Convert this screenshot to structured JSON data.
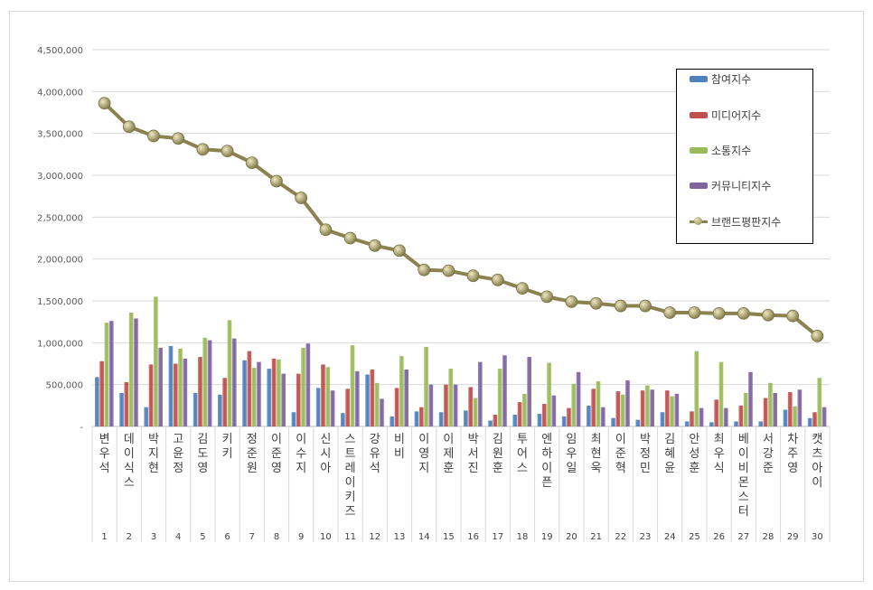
{
  "chart_data": {
    "type": "bar",
    "title": "",
    "xlabel": "",
    "ylabel": "",
    "ylim": [
      0,
      4500000
    ],
    "y_ticks": [
      "-",
      "500,000",
      "1,000,000",
      "1,500,000",
      "2,000,000",
      "2,500,000",
      "3,000,000",
      "3,500,000",
      "4,000,000",
      "4,500,000"
    ],
    "grid": true,
    "legend_position": "top-right",
    "categories": [
      "변우석",
      "데이식스",
      "박지현",
      "고윤정",
      "김도영",
      "키키",
      "정준원",
      "이준영",
      "이수지",
      "신시아",
      "스트레이키즈",
      "강유석",
      "비비",
      "이영지",
      "이제훈",
      "박서진",
      "김원훈",
      "투어스",
      "엔하이픈",
      "임우일",
      "최현욱",
      "이준혁",
      "박정민",
      "김혜윤",
      "안성훈",
      "최우식",
      "베이비몬스터",
      "서강준",
      "차주영",
      "캣츠아이"
    ],
    "ranks": [
      "1",
      "2",
      "3",
      "4",
      "5",
      "6",
      "7",
      "8",
      "9",
      "10",
      "11",
      "12",
      "13",
      "14",
      "15",
      "16",
      "17",
      "18",
      "19",
      "20",
      "21",
      "22",
      "23",
      "24",
      "25",
      "26",
      "27",
      "28",
      "29",
      "30"
    ],
    "series": [
      {
        "name": "참여지수",
        "type": "bar",
        "color": "#4f81bd",
        "values": [
          590000,
          400000,
          230000,
          960000,
          400000,
          380000,
          790000,
          690000,
          170000,
          460000,
          160000,
          620000,
          120000,
          180000,
          170000,
          190000,
          70000,
          140000,
          150000,
          120000,
          250000,
          100000,
          80000,
          170000,
          60000,
          50000,
          60000,
          60000,
          200000,
          100000
        ]
      },
      {
        "name": "미디어지수",
        "type": "bar",
        "color": "#c0504d",
        "values": [
          780000,
          530000,
          740000,
          750000,
          830000,
          580000,
          900000,
          810000,
          630000,
          740000,
          450000,
          680000,
          460000,
          230000,
          500000,
          470000,
          140000,
          290000,
          270000,
          220000,
          450000,
          420000,
          430000,
          430000,
          180000,
          320000,
          250000,
          340000,
          410000,
          170000
        ]
      },
      {
        "name": "소통지수",
        "type": "bar",
        "color": "#9bbb59",
        "values": [
          1240000,
          1360000,
          1550000,
          930000,
          1060000,
          1270000,
          700000,
          800000,
          940000,
          710000,
          970000,
          520000,
          840000,
          950000,
          690000,
          340000,
          690000,
          390000,
          760000,
          510000,
          540000,
          380000,
          490000,
          360000,
          900000,
          770000,
          400000,
          520000,
          240000,
          580000
        ]
      },
      {
        "name": "커뮤니티지수",
        "type": "bar",
        "color": "#8064a2",
        "values": [
          1260000,
          1290000,
          940000,
          810000,
          1030000,
          1050000,
          770000,
          630000,
          990000,
          430000,
          660000,
          330000,
          680000,
          500000,
          500000,
          770000,
          850000,
          830000,
          370000,
          650000,
          230000,
          550000,
          440000,
          390000,
          220000,
          220000,
          650000,
          400000,
          440000,
          230000
        ]
      },
      {
        "name": "브랜드평판지수",
        "type": "line",
        "color": "#8b8250",
        "values": [
          3860000,
          3580000,
          3470000,
          3440000,
          3310000,
          3290000,
          3150000,
          2930000,
          2730000,
          2350000,
          2250000,
          2160000,
          2100000,
          1870000,
          1860000,
          1800000,
          1750000,
          1650000,
          1550000,
          1490000,
          1470000,
          1440000,
          1440000,
          1360000,
          1360000,
          1350000,
          1350000,
          1330000,
          1320000,
          1080000
        ]
      }
    ]
  }
}
